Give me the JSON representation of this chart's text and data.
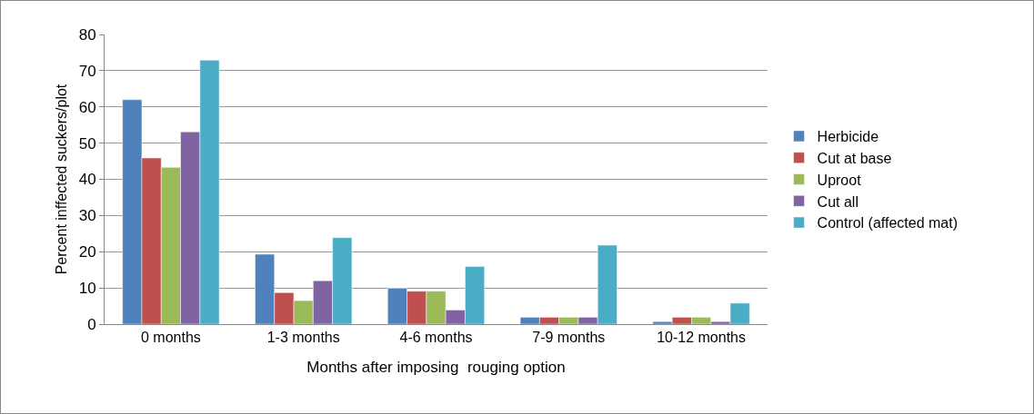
{
  "chart_data": {
    "type": "bar",
    "xlabel": "Months after imposing  rouging option",
    "ylabel": "Percent inffected suckers/plot",
    "categories": [
      "0 months",
      "1-3 months",
      "4-6 months",
      "7-9 months",
      "10-12 months"
    ],
    "series": [
      {
        "name": "Herbicide",
        "color": "#4f81bd",
        "values": [
          62,
          19.3,
          9.9,
          1.9,
          0.7
        ]
      },
      {
        "name": "Cut at base",
        "color": "#c0504d",
        "values": [
          45.9,
          8.7,
          9.1,
          1.9,
          1.9
        ]
      },
      {
        "name": "Uproot",
        "color": "#9bbb59",
        "values": [
          43.3,
          6.5,
          9.1,
          1.9,
          1.9
        ]
      },
      {
        "name": "Cut all",
        "color": "#8064a2",
        "values": [
          53.1,
          12,
          3.9,
          1.9,
          0.7
        ]
      },
      {
        "name": "Control (affected mat)",
        "color": "#4bacc6",
        "values": [
          72.9,
          23.9,
          15.9,
          21.8,
          5.8
        ]
      }
    ],
    "ylim": [
      0,
      80
    ],
    "yticks": [
      0,
      10,
      20,
      30,
      40,
      50,
      60,
      70,
      80
    ],
    "grid": "y",
    "legend": "right"
  }
}
